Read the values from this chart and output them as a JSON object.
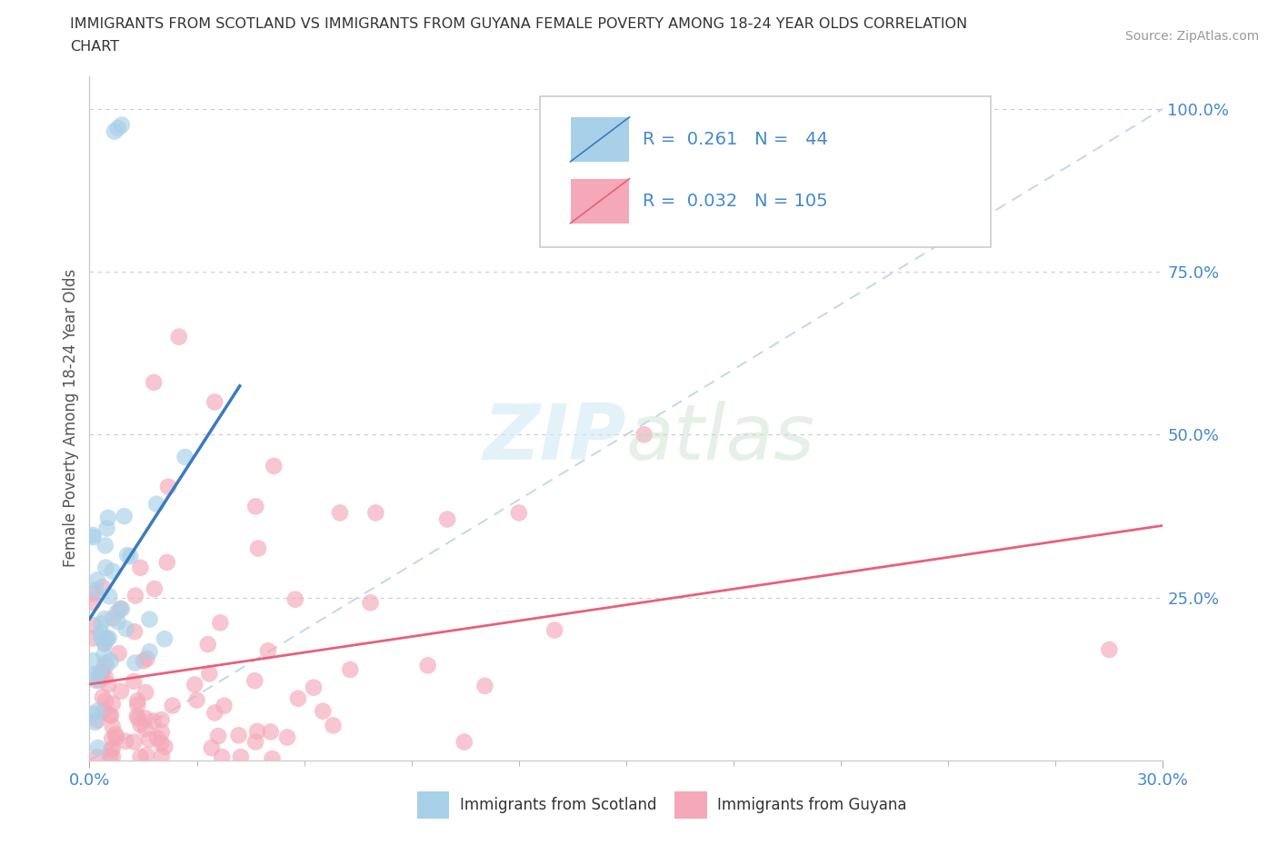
{
  "title_line1": "IMMIGRANTS FROM SCOTLAND VS IMMIGRANTS FROM GUYANA FEMALE POVERTY AMONG 18-24 YEAR OLDS CORRELATION",
  "title_line2": "CHART",
  "source_text": "Source: ZipAtlas.com",
  "ylabel": "Female Poverty Among 18-24 Year Olds",
  "xmin": 0.0,
  "xmax": 0.3,
  "ymin": 0.0,
  "ymax": 1.05,
  "scotland_R": 0.261,
  "scotland_N": 44,
  "guyana_R": 0.032,
  "guyana_N": 105,
  "scotland_color": "#a8d0e8",
  "guyana_color": "#f4a8b8",
  "scotland_line_color": "#3a7bbf",
  "guyana_line_color": "#e8607a",
  "legend_scotland": "Immigrants from Scotland",
  "legend_guyana": "Immigrants from Guyana",
  "background_color": "#ffffff",
  "ref_line_color": "#b8d0e8",
  "grid_color": "#cccccc",
  "tick_label_color": "#4488cc",
  "ylabel_color": "#555555",
  "title_color": "#333333",
  "source_color": "#999999"
}
